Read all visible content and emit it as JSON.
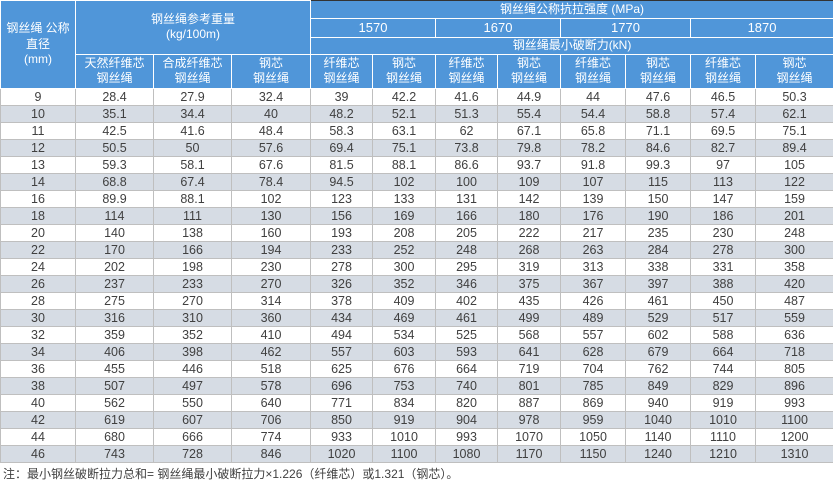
{
  "colors": {
    "header_bg": "#5096D9",
    "stripe_row_bg": "#D6DCE4",
    "grid_line": "#BFBFBF",
    "body_text": "#404040"
  },
  "table": {
    "header": {
      "diameter": "钢丝绳 公称\n直径\n(mm)",
      "weight_group": "钢丝绳参考重量\n(kg/100m)",
      "weight_cols": [
        "天然纤维芯\n钢丝绳",
        "合成纤维芯\n钢丝绳",
        "钢芯\n钢丝绳"
      ],
      "strength_group": "钢丝绳公称抗拉强度 (MPa)",
      "strength_values": [
        "1570",
        "1670",
        "1770",
        "1870"
      ],
      "breaking_group": "钢丝绳最小破断力(kN)",
      "core_cols": [
        "纤维芯\n钢丝绳",
        "钢芯\n钢丝绳"
      ]
    },
    "rows": [
      [
        9,
        28.4,
        27.9,
        32.4,
        39,
        42.2,
        41.6,
        44.9,
        44,
        47.6,
        46.5,
        50.3
      ],
      [
        10,
        35.1,
        34.4,
        40,
        48.2,
        52.1,
        51.3,
        55.4,
        54.4,
        58.8,
        57.4,
        62.1
      ],
      [
        11,
        42.5,
        41.6,
        48.4,
        58.3,
        63.1,
        62,
        67.1,
        65.8,
        71.1,
        69.5,
        75.1
      ],
      [
        12,
        50.5,
        50,
        57.6,
        69.4,
        75.1,
        73.8,
        79.8,
        78.2,
        84.6,
        82.7,
        89.4
      ],
      [
        13,
        59.3,
        58.1,
        67.6,
        81.5,
        88.1,
        86.6,
        93.7,
        91.8,
        99.3,
        97,
        105
      ],
      [
        14,
        68.8,
        67.4,
        78.4,
        94.5,
        102,
        100,
        109,
        107,
        115,
        113,
        122
      ],
      [
        16,
        89.9,
        88.1,
        102,
        123,
        133,
        131,
        142,
        139,
        150,
        147,
        159
      ],
      [
        18,
        114,
        111,
        130,
        156,
        169,
        166,
        180,
        176,
        190,
        186,
        201
      ],
      [
        20,
        140,
        138,
        160,
        193,
        208,
        205,
        222,
        217,
        235,
        230,
        248
      ],
      [
        22,
        170,
        166,
        194,
        233,
        252,
        248,
        268,
        263,
        284,
        278,
        300
      ],
      [
        24,
        202,
        198,
        230,
        278,
        300,
        295,
        319,
        313,
        338,
        331,
        358
      ],
      [
        26,
        237,
        233,
        270,
        326,
        352,
        346,
        375,
        367,
        397,
        388,
        420
      ],
      [
        28,
        275,
        270,
        314,
        378,
        409,
        402,
        435,
        426,
        461,
        450,
        487
      ],
      [
        30,
        316,
        310,
        360,
        434,
        469,
        461,
        499,
        489,
        529,
        517,
        559
      ],
      [
        32,
        359,
        352,
        410,
        494,
        534,
        525,
        568,
        557,
        602,
        588,
        636
      ],
      [
        34,
        406,
        398,
        462,
        557,
        603,
        593,
        641,
        628,
        679,
        664,
        718
      ],
      [
        36,
        455,
        446,
        518,
        625,
        676,
        664,
        719,
        704,
        762,
        744,
        805
      ],
      [
        38,
        507,
        497,
        578,
        696,
        753,
        740,
        801,
        785,
        849,
        829,
        896
      ],
      [
        40,
        562,
        550,
        640,
        771,
        834,
        820,
        887,
        869,
        940,
        919,
        993
      ],
      [
        42,
        619,
        607,
        706,
        850,
        919,
        904,
        978,
        959,
        1040,
        1010,
        1100
      ],
      [
        44,
        680,
        666,
        774,
        933,
        1010,
        993,
        1070,
        1050,
        1140,
        1110,
        1200
      ],
      [
        46,
        743,
        728,
        846,
        1020,
        1100,
        1080,
        1170,
        1150,
        1240,
        1210,
        1310
      ]
    ]
  },
  "note": "注：最小钢丝破断拉力总和= 钢丝绳最小破断拉力×1.226（纤维芯）或1.321（钢芯）。"
}
